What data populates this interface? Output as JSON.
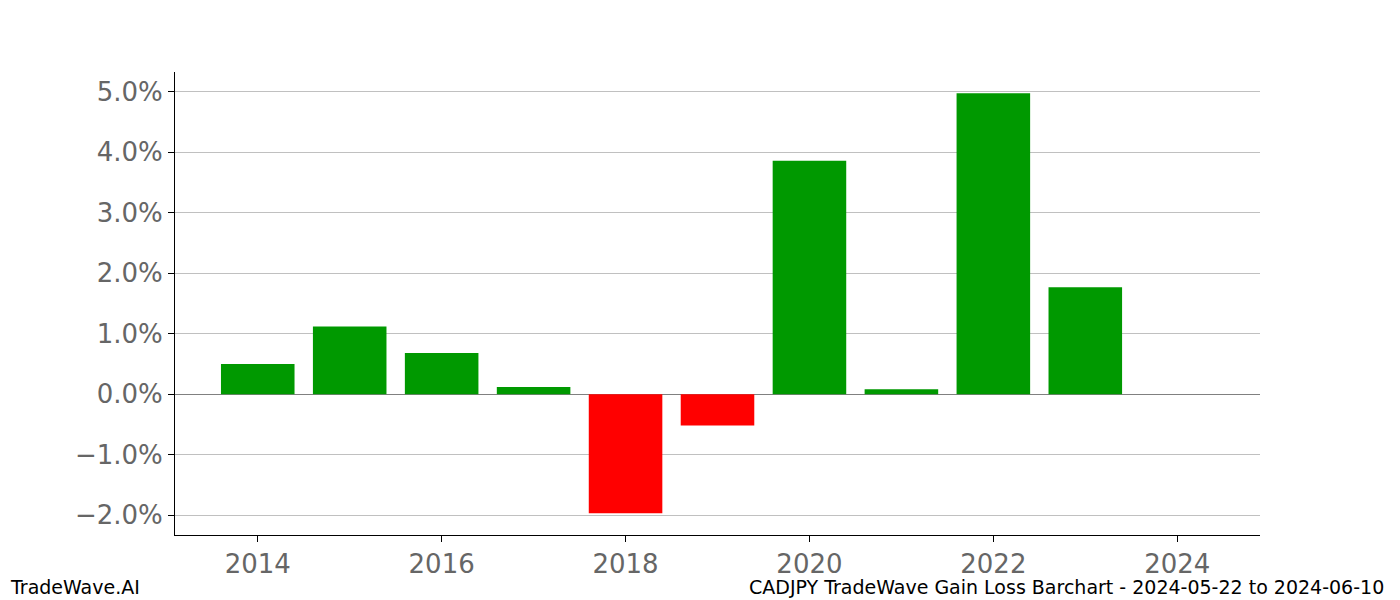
{
  "chart_data": {
    "type": "bar",
    "x": [
      2014,
      2015,
      2016,
      2017,
      2018,
      2019,
      2020,
      2021,
      2022,
      2023
    ],
    "values": [
      0.5,
      1.12,
      0.68,
      0.12,
      -1.97,
      -0.52,
      3.86,
      0.08,
      4.98,
      1.77
    ],
    "colors": [
      "#009900",
      "#009900",
      "#009900",
      "#009900",
      "#ff0000",
      "#ff0000",
      "#009900",
      "#009900",
      "#009900",
      "#009900"
    ],
    "xlim": [
      2013.1,
      2024.9
    ],
    "xticks": [
      2014,
      2016,
      2018,
      2020,
      2022,
      2024
    ],
    "ylim": [
      -2.33,
      5.33
    ],
    "yticks": [
      {
        "value": -2,
        "label": "−2.0%"
      },
      {
        "value": -1,
        "label": "−1.0%"
      },
      {
        "value": 0,
        "label": "0.0%"
      },
      {
        "value": 1,
        "label": "1.0%"
      },
      {
        "value": 2,
        "label": "2.0%"
      },
      {
        "value": 3,
        "label": "3.0%"
      },
      {
        "value": 4,
        "label": "4.0%"
      },
      {
        "value": 5,
        "label": "5.0%"
      }
    ],
    "grid": true,
    "annotations": [
      "TradeWave.AI",
      "CADJPY TradeWave Gain Loss Barchart - 2024-05-22 to 2024-06-10"
    ]
  }
}
